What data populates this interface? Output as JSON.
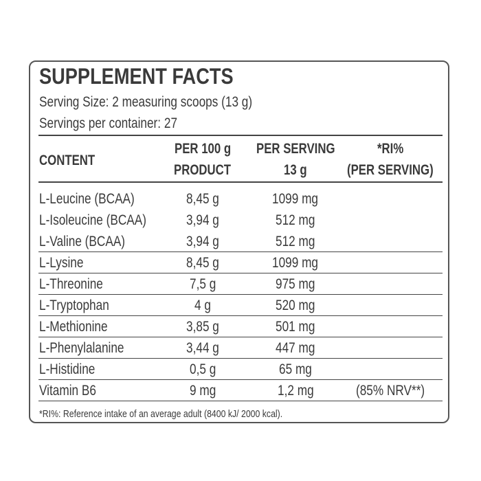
{
  "header": {
    "title": "SUPPLEMENT FACTS",
    "serving_size": "Serving Size: 2 measuring scoops (13 g)",
    "servings": "Servings per container: 27"
  },
  "table": {
    "columns": [
      [
        "CONTENT"
      ],
      [
        "PER 100 g",
        "PRODUCT"
      ],
      [
        "PER SERVING",
        "13 g"
      ],
      [
        "*RI%",
        "(PER SERVING)"
      ]
    ],
    "rows": [
      [
        "L-Leucine (BCAA)",
        "8,45 g",
        "1099 mg"
      ],
      [
        "L-Isoleucine (BCAA)",
        "3,94 g",
        "512 mg"
      ],
      [
        "L-Valine (BCAA)",
        "3,94 g",
        "512 mg"
      ],
      [
        "L-Lysine",
        "8,45 g",
        "1099 mg"
      ],
      [
        "L-Threonine",
        "7,5 g",
        "975 mg"
      ],
      [
        "L-Tryptophan",
        "4 g",
        "520 mg"
      ],
      [
        "L-Methionine",
        "3,85 g",
        "501 mg"
      ],
      [
        "L-Phenylalanine",
        "3,44 g",
        "447 mg"
      ],
      [
        "L-Histidine",
        "0,5 g",
        "65 mg"
      ],
      [
        "Vitamin B6",
        "9 mg",
        "1,2 mg",
        "(85% NRV**)"
      ]
    ]
  },
  "footnote": "*RI%: Reference intake of an average adult (8400 kJ/ 2000 kcal)."
}
